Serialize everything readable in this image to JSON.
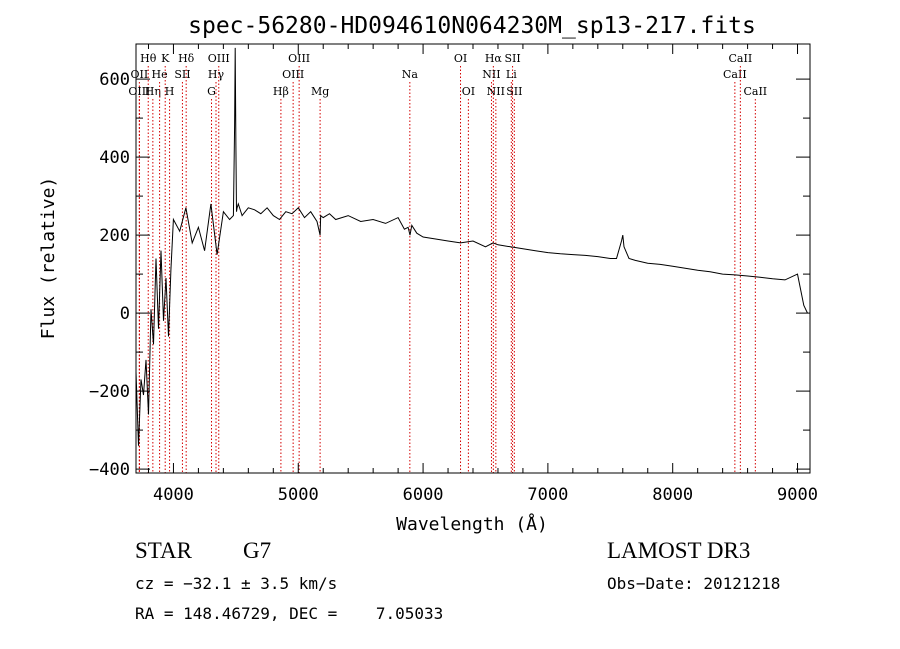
{
  "chart_data": {
    "type": "line",
    "title": "spec-56280-HD094610N064230M_sp13-217.fits",
    "xlabel": "Wavelength (Å)",
    "ylabel": "Flux (relative)",
    "xlim": [
      3700,
      9100
    ],
    "ylim": [
      -410,
      690
    ],
    "xticks": [
      4000,
      5000,
      6000,
      7000,
      8000,
      9000
    ],
    "yticks": [
      -400,
      -200,
      0,
      200,
      400,
      600
    ],
    "xtick_labels": [
      "4000",
      "5000",
      "6000",
      "7000",
      "8000",
      "9000"
    ],
    "ytick_labels": [
      "−400",
      "−200",
      "0",
      "200",
      "400",
      "600"
    ],
    "series": [
      {
        "name": "flux",
        "x": [
          3700,
          3720,
          3740,
          3760,
          3780,
          3800,
          3820,
          3840,
          3860,
          3880,
          3900,
          3920,
          3940,
          3960,
          3980,
          4000,
          4050,
          4100,
          4150,
          4200,
          4250,
          4300,
          4350,
          4400,
          4450,
          4480,
          4490,
          4495,
          4500,
          4505,
          4510,
          4520,
          4550,
          4600,
          4650,
          4700,
          4750,
          4800,
          4850,
          4900,
          4950,
          5000,
          5050,
          5100,
          5150,
          5175,
          5180,
          5200,
          5250,
          5300,
          5400,
          5500,
          5600,
          5700,
          5800,
          5850,
          5880,
          5895,
          5910,
          5950,
          6000,
          6100,
          6200,
          6300,
          6400,
          6500,
          6560,
          6600,
          6700,
          6800,
          6900,
          7000,
          7100,
          7200,
          7300,
          7400,
          7500,
          7550,
          7590,
          7600,
          7610,
          7650,
          7700,
          7800,
          7900,
          8000,
          8100,
          8200,
          8300,
          8400,
          8500,
          8600,
          8700,
          8800,
          8900,
          9000,
          9050,
          9080
        ],
        "y": [
          -150,
          -340,
          -170,
          -210,
          -120,
          -260,
          10,
          -80,
          140,
          -40,
          160,
          -20,
          90,
          -60,
          110,
          240,
          210,
          270,
          180,
          220,
          160,
          280,
          150,
          260,
          240,
          250,
          480,
          680,
          430,
          260,
          270,
          280,
          250,
          270,
          265,
          255,
          270,
          250,
          240,
          260,
          255,
          270,
          245,
          260,
          235,
          200,
          250,
          245,
          255,
          240,
          250,
          235,
          240,
          230,
          245,
          215,
          220,
          200,
          225,
          205,
          195,
          190,
          185,
          180,
          185,
          170,
          180,
          175,
          170,
          165,
          160,
          155,
          152,
          150,
          148,
          145,
          140,
          140,
          185,
          200,
          170,
          140,
          135,
          128,
          125,
          120,
          115,
          110,
          106,
          100,
          98,
          95,
          92,
          88,
          85,
          100,
          20,
          0
        ]
      }
    ],
    "lines": [
      {
        "label": "Hθ",
        "x": 3798,
        "row": 1
      },
      {
        "label": "OII",
        "x": 3727,
        "row": 2
      },
      {
        "label": "OIII",
        "x": 3727,
        "row": 3
      },
      {
        "label": "Hη",
        "x": 3835,
        "row": 3
      },
      {
        "label": "K",
        "x": 3934,
        "row": 1
      },
      {
        "label": "He",
        "x": 3889,
        "row": 2
      },
      {
        "label": "H",
        "x": 3969,
        "row": 3
      },
      {
        "label": "SII",
        "x": 4072,
        "row": 2
      },
      {
        "label": "Hδ",
        "x": 4102,
        "row": 1
      },
      {
        "label": "OIII",
        "x": 4363,
        "row": 1
      },
      {
        "label": "Hγ",
        "x": 4341,
        "row": 2
      },
      {
        "label": "G",
        "x": 4305,
        "row": 3
      },
      {
        "label": "Hβ",
        "x": 4861,
        "row": 3
      },
      {
        "label": "OIII",
        "x": 5007,
        "row": 1
      },
      {
        "label": "OIII",
        "x": 4959,
        "row": 2
      },
      {
        "label": "Mg",
        "x": 5175,
        "row": 3
      },
      {
        "label": "Na",
        "x": 5894,
        "row": 2
      },
      {
        "label": "OI",
        "x": 6300,
        "row": 1
      },
      {
        "label": "OI",
        "x": 6363,
        "row": 3
      },
      {
        "label": "Hα",
        "x": 6563,
        "row": 1
      },
      {
        "label": "NII",
        "x": 6548,
        "row": 2
      },
      {
        "label": "NII",
        "x": 6583,
        "row": 3
      },
      {
        "label": "SII",
        "x": 6717,
        "row": 1
      },
      {
        "label": "Li",
        "x": 6707,
        "row": 2
      },
      {
        "label": "SII",
        "x": 6731,
        "row": 3
      },
      {
        "label": "CaII",
        "x": 8498,
        "row": 2
      },
      {
        "label": "CaII",
        "x": 8542,
        "row": 1
      },
      {
        "label": "CaII",
        "x": 8662,
        "row": 3
      }
    ]
  },
  "footer": {
    "object_class": "STAR",
    "subclass": "G7",
    "survey": "LAMOST DR3",
    "cz": "cz = −32.1 ± 3.5 km/s",
    "obs_date": "Obs−Date: 20121218",
    "coords": "RA = 148.46729, DEC =    7.05033"
  }
}
